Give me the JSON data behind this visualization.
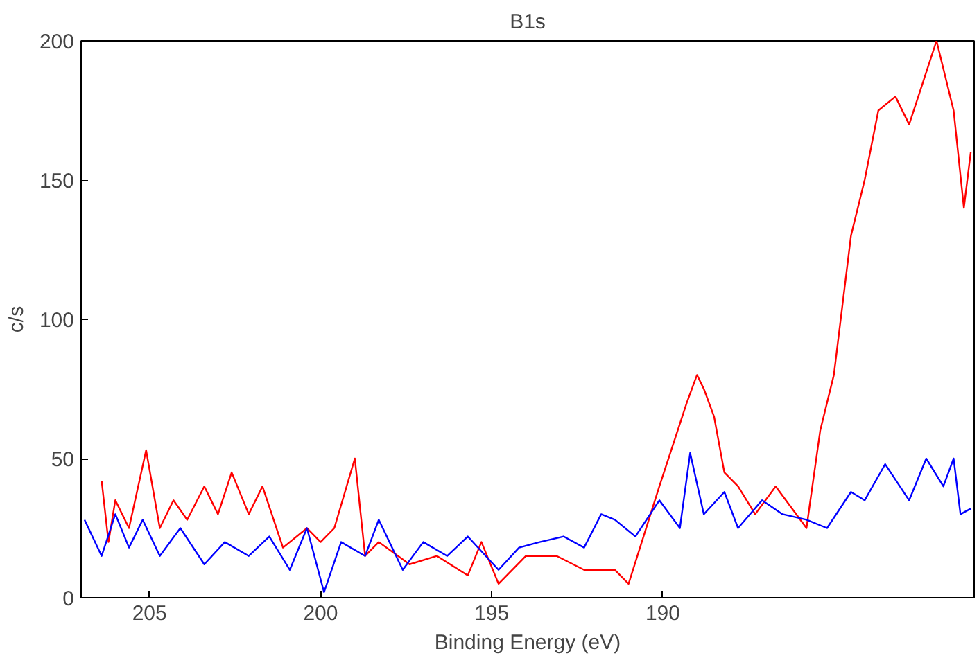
{
  "chart_data": {
    "type": "line",
    "title": "B1s",
    "xlabel": "Binding Energy (eV)",
    "ylabel": "c/s",
    "xlim": [
      207.0,
      180.9
    ],
    "xticks": [
      205,
      200,
      195,
      190
    ],
    "ylim": [
      0,
      200
    ],
    "yticks": [
      0,
      50,
      100,
      150,
      200
    ],
    "series": [
      {
        "color": "#ff0000",
        "x": [
          206.4,
          206.2,
          206.0,
          205.6,
          205.1,
          204.7,
          204.3,
          203.9,
          203.4,
          203.0,
          202.6,
          202.1,
          201.7,
          201.1,
          200.4,
          200.0,
          199.6,
          199.0,
          198.7,
          198.3,
          197.4,
          196.6,
          195.7,
          195.3,
          194.8,
          194.0,
          193.1,
          192.3,
          191.4,
          191.0,
          190.1,
          189.7,
          189.3,
          189.0,
          188.8,
          188.5,
          188.2,
          187.8,
          187.3,
          186.7,
          185.8,
          185.4,
          185.0,
          184.5,
          184.1,
          183.7,
          183.2,
          182.8,
          182.4,
          182.0,
          181.5,
          181.2,
          181.0
        ],
        "values": [
          42,
          20,
          35,
          25,
          53,
          25,
          35,
          28,
          40,
          30,
          45,
          30,
          40,
          18,
          25,
          20,
          25,
          50,
          15,
          20,
          12,
          15,
          8,
          20,
          5,
          15,
          15,
          10,
          10,
          5,
          40,
          55,
          70,
          80,
          75,
          65,
          45,
          40,
          30,
          40,
          25,
          60,
          80,
          130,
          150,
          175,
          180,
          170,
          185,
          200,
          175,
          140,
          160
        ]
      },
      {
        "color": "#0000ff",
        "x": [
          206.9,
          206.4,
          206.0,
          205.6,
          205.2,
          204.7,
          204.1,
          203.4,
          202.8,
          202.1,
          201.5,
          200.9,
          200.4,
          199.9,
          199.4,
          198.7,
          198.3,
          197.6,
          197.0,
          196.3,
          195.7,
          194.8,
          194.2,
          193.6,
          192.9,
          192.3,
          191.8,
          191.4,
          190.8,
          190.1,
          189.5,
          189.2,
          188.8,
          188.2,
          187.8,
          187.1,
          186.5,
          185.8,
          185.2,
          184.5,
          184.1,
          183.5,
          182.8,
          182.3,
          181.8,
          181.5,
          181.3,
          181.0
        ],
        "values": [
          28,
          15,
          30,
          18,
          28,
          15,
          25,
          12,
          20,
          15,
          22,
          10,
          25,
          2,
          20,
          15,
          28,
          10,
          20,
          15,
          22,
          10,
          18,
          20,
          22,
          18,
          30,
          28,
          22,
          35,
          25,
          52,
          30,
          38,
          25,
          35,
          30,
          28,
          25,
          38,
          35,
          48,
          35,
          50,
          40,
          50,
          30,
          32
        ]
      }
    ]
  }
}
